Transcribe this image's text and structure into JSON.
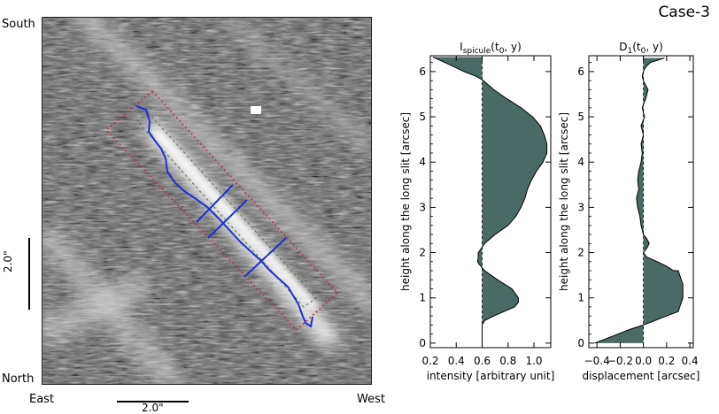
{
  "case_label": "Case-3",
  "compass": {
    "south": "South",
    "north": "North",
    "east": "East",
    "west": "West"
  },
  "scale_bars": {
    "vertical": "2.0\"",
    "horizontal": "2.0\""
  },
  "colors": {
    "fill": "#4a6a66",
    "slit_line": "#1f2fd6",
    "box": "#c0303a",
    "inner_box": "#4c7a35"
  },
  "chart_data": [
    {
      "type": "area",
      "title": "I_spicule(t0, y)",
      "title_main": "I",
      "title_sub": "spicule",
      "title_rest": "(t",
      "title_sub2": "0",
      "title_end": ", y)",
      "xlabel": "intensity [arbitrary unit]",
      "ylabel": "height along the long slit [arcsec]",
      "xlim": [
        0.2,
        1.13
      ],
      "ylim": [
        -0.1,
        6.35
      ],
      "xticks": [
        0.2,
        0.4,
        0.6,
        0.8,
        1.0
      ],
      "xtick_labels": [
        "0.2",
        "0.4",
        "0.6",
        "0.8",
        "1.0"
      ],
      "yticks": [
        0,
        1,
        2,
        3,
        4,
        5,
        6
      ],
      "ytick_labels": [
        "0",
        "1",
        "2",
        "3",
        "4",
        "5",
        "6"
      ],
      "baseline": 0.6,
      "series": [
        {
          "y": [
            6.32,
            6.15,
            6.0,
            5.9,
            5.8,
            5.6,
            5.4,
            5.2,
            5.0,
            4.8,
            4.6,
            4.4,
            4.2,
            4.0,
            3.8,
            3.6,
            3.4,
            3.2,
            3.0,
            2.8,
            2.6,
            2.4,
            2.2,
            2.0,
            1.9,
            1.8,
            1.75,
            1.7,
            1.6,
            1.4,
            1.2,
            1.0,
            0.9,
            0.8,
            0.6,
            0.5,
            0.4,
            0.0
          ],
          "x": [
            0.22,
            0.35,
            0.46,
            0.55,
            0.61,
            0.69,
            0.79,
            0.9,
            0.99,
            1.05,
            1.08,
            1.1,
            1.1,
            1.07,
            1.02,
            0.98,
            0.95,
            0.93,
            0.9,
            0.86,
            0.8,
            0.7,
            0.62,
            0.57,
            0.57,
            0.565,
            0.575,
            0.59,
            0.62,
            0.72,
            0.83,
            0.88,
            0.88,
            0.85,
            0.69,
            0.62,
            0.6,
            0.6
          ]
        }
      ]
    },
    {
      "type": "area",
      "title": "D1(t0, y)",
      "title_main": "D",
      "title_sub": "1",
      "title_rest": "(t",
      "title_sub2": "0",
      "title_end": ", y)",
      "xlabel": "displacement [arcsec]",
      "ylabel": "height along the long slit [arcsec]",
      "xlim": [
        -0.47,
        0.43
      ],
      "ylim": [
        -0.1,
        6.35
      ],
      "xticks": [
        -0.4,
        -0.2,
        0.0,
        0.2,
        0.4
      ],
      "xtick_labels": [
        "−0.4",
        "−0.2",
        "0.0",
        "0.2",
        "0.4"
      ],
      "yticks": [
        0,
        1,
        2,
        3,
        4,
        5,
        6
      ],
      "ytick_labels": [
        "0",
        "1",
        "2",
        "3",
        "4",
        "5",
        "6"
      ],
      "baseline": 0.0,
      "series": [
        {
          "y": [
            6.3,
            6.25,
            6.2,
            6.1,
            6.0,
            5.9,
            5.8,
            5.7,
            5.6,
            5.4,
            5.2,
            5.0,
            4.8,
            4.6,
            4.4,
            4.2,
            4.0,
            3.8,
            3.6,
            3.4,
            3.2,
            3.0,
            2.8,
            2.6,
            2.4,
            2.3,
            2.2,
            2.1,
            2.0,
            1.9,
            1.8,
            1.7,
            1.6,
            1.6,
            1.3,
            1.0,
            0.7,
            0.4,
            0.3,
            0.2,
            0.1,
            0.0
          ],
          "x": [
            0.18,
            0.12,
            0.06,
            0.02,
            0.0,
            -0.01,
            0.0,
            0.02,
            0.04,
            0.02,
            -0.01,
            0.01,
            -0.02,
            0.0,
            -0.02,
            -0.01,
            -0.02,
            -0.04,
            -0.05,
            -0.04,
            -0.06,
            -0.05,
            -0.03,
            -0.02,
            0.0,
            0.03,
            0.05,
            0.03,
            0.0,
            0.03,
            0.12,
            0.2,
            0.26,
            0.3,
            0.34,
            0.34,
            0.3,
            0.0,
            -0.12,
            -0.22,
            -0.32,
            -0.42
          ]
        }
      ]
    }
  ]
}
